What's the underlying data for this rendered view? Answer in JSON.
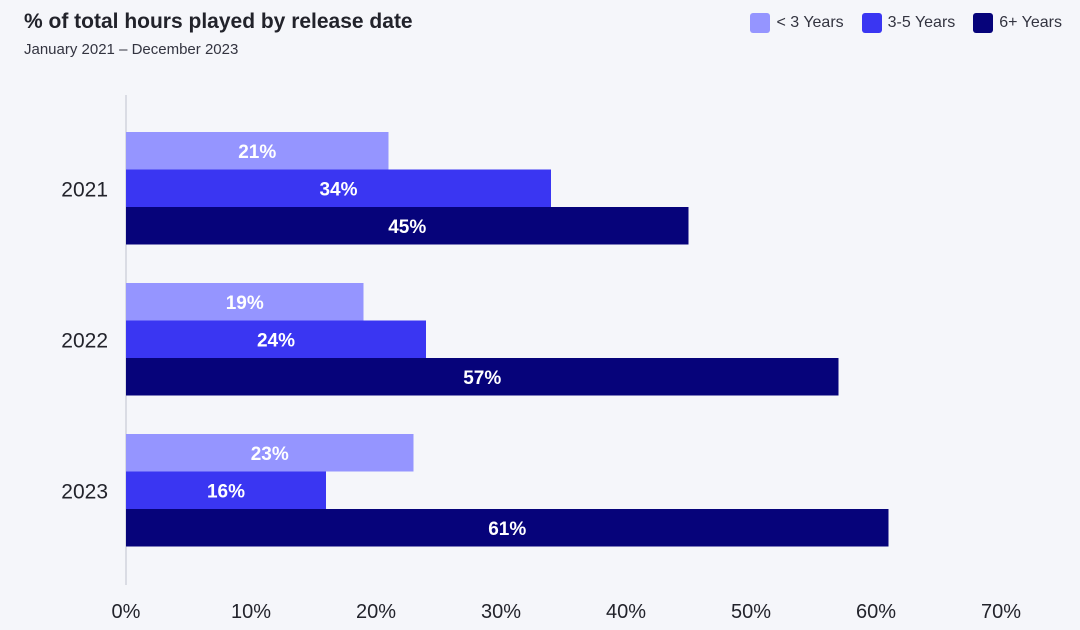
{
  "chart_data": {
    "type": "bar",
    "orientation": "horizontal",
    "title": "% of total hours played by release date",
    "subtitle": "January 2021 – December 2023",
    "categories": [
      "2021",
      "2022",
      "2023"
    ],
    "series": [
      {
        "name": "< 3 Years",
        "color": "#9595ff",
        "values": [
          21,
          19,
          23
        ]
      },
      {
        "name": "3-5 Years",
        "color": "#3a36f2",
        "values": [
          34,
          24,
          16
        ]
      },
      {
        "name": "6+ Years",
        "color": "#06037a",
        "values": [
          45,
          57,
          61
        ]
      }
    ],
    "value_suffix": "%",
    "xlim": [
      0,
      70
    ],
    "xticks": [
      "0%",
      "10%",
      "20%",
      "30%",
      "40%",
      "50%",
      "60%",
      "70%"
    ],
    "legend_position": "top-right",
    "grid": false
  }
}
